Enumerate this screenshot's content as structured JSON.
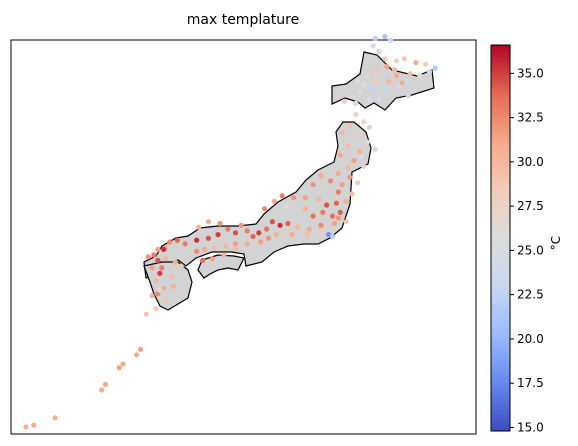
{
  "title": "max templature",
  "colorbar": {
    "unit": "°C",
    "min": 14.8,
    "max": 36.6,
    "ticks": [
      "15.0",
      "17.5",
      "20.0",
      "22.5",
      "25.0",
      "27.5",
      "30.0",
      "32.5",
      "35.0"
    ],
    "colormap": "coolwarm",
    "colors": [
      "#3b4cc0",
      "#6788ee",
      "#9abbff",
      "#c9d7f0",
      "#dddcdc",
      "#f2cbb7",
      "#f7a889",
      "#e26952",
      "#b40426"
    ]
  },
  "map": {
    "land_color": "#d3d3d3",
    "outline_color": "#000000",
    "region": "Japan",
    "stations": [
      [
        141.8,
        45.3,
        22.0
      ],
      [
        142.3,
        45.4,
        21.0
      ],
      [
        142.6,
        45.2,
        23.0
      ],
      [
        141.7,
        44.9,
        25.0
      ],
      [
        142.0,
        44.6,
        27.0
      ],
      [
        142.3,
        44.2,
        28.5
      ],
      [
        142.9,
        44.1,
        26.0
      ],
      [
        143.3,
        44.2,
        29.0
      ],
      [
        143.9,
        44.0,
        30.5
      ],
      [
        144.4,
        43.9,
        28.0
      ],
      [
        144.9,
        43.7,
        21.5
      ],
      [
        144.6,
        43.5,
        24.0
      ],
      [
        143.6,
        43.4,
        29.5
      ],
      [
        142.8,
        43.6,
        30.0
      ],
      [
        142.4,
        43.8,
        31.5
      ],
      [
        141.9,
        43.6,
        29.0
      ],
      [
        141.4,
        43.2,
        27.0
      ],
      [
        141.8,
        43.0,
        28.0
      ],
      [
        142.5,
        43.0,
        30.0
      ],
      [
        143.2,
        42.9,
        31.0
      ],
      [
        143.0,
        42.7,
        24.0
      ],
      [
        142.4,
        42.5,
        23.0
      ],
      [
        141.6,
        42.6,
        22.5
      ],
      [
        141.0,
        42.4,
        25.0
      ],
      [
        140.5,
        42.2,
        27.5
      ],
      [
        140.2,
        41.9,
        28.0
      ],
      [
        140.8,
        41.8,
        27.0
      ],
      [
        141.2,
        42.8,
        26.0
      ],
      [
        140.9,
        43.0,
        25.5
      ],
      [
        142.9,
        43.3,
        31.0
      ],
      [
        143.5,
        42.2,
        23.5
      ],
      [
        142.0,
        42.0,
        24.5
      ],
      [
        140.8,
        41.2,
        26.0
      ],
      [
        141.2,
        40.8,
        27.5
      ],
      [
        141.5,
        40.5,
        28.0
      ],
      [
        140.5,
        40.6,
        29.0
      ],
      [
        140.1,
        40.2,
        30.0
      ],
      [
        140.9,
        40.0,
        28.5
      ],
      [
        141.4,
        39.7,
        27.0
      ],
      [
        141.8,
        39.3,
        26.0
      ],
      [
        141.0,
        39.2,
        30.5
      ],
      [
        140.4,
        39.5,
        29.5
      ],
      [
        140.0,
        39.0,
        31.0
      ],
      [
        140.7,
        38.7,
        31.5
      ],
      [
        141.2,
        38.4,
        27.5
      ],
      [
        140.4,
        38.3,
        30.0
      ],
      [
        139.9,
        38.0,
        31.0
      ],
      [
        140.5,
        37.8,
        32.0
      ],
      [
        140.9,
        37.5,
        28.0
      ],
      [
        140.1,
        37.4,
        31.5
      ],
      [
        139.5,
        37.6,
        32.5
      ],
      [
        139.0,
        37.9,
        31.0
      ],
      [
        138.6,
        37.4,
        32.0
      ],
      [
        139.9,
        37.0,
        33.0
      ],
      [
        140.6,
        36.9,
        29.5
      ],
      [
        140.3,
        36.5,
        30.5
      ],
      [
        139.8,
        36.4,
        34.0
      ],
      [
        139.3,
        36.3,
        34.5
      ],
      [
        138.9,
        36.6,
        30.0
      ],
      [
        138.2,
        36.7,
        31.5
      ],
      [
        137.6,
        36.7,
        32.0
      ],
      [
        137.0,
        36.8,
        33.0
      ],
      [
        136.6,
        36.5,
        31.0
      ],
      [
        136.1,
        36.1,
        32.5
      ],
      [
        137.2,
        36.2,
        26.0
      ],
      [
        138.2,
        36.1,
        30.5
      ],
      [
        138.6,
        35.7,
        33.5
      ],
      [
        139.1,
        35.9,
        33.0
      ],
      [
        139.6,
        35.7,
        33.5
      ],
      [
        139.9,
        35.6,
        32.0
      ],
      [
        140.3,
        35.4,
        29.0
      ],
      [
        139.7,
        35.3,
        31.5
      ],
      [
        139.0,
        35.2,
        32.5
      ],
      [
        138.4,
        35.0,
        31.0
      ],
      [
        137.8,
        35.1,
        30.0
      ],
      [
        137.3,
        35.3,
        34.0
      ],
      [
        136.9,
        35.2,
        35.5
      ],
      [
        136.5,
        35.4,
        34.5
      ],
      [
        136.2,
        35.0,
        33.5
      ],
      [
        135.8,
        34.8,
        35.0
      ],
      [
        135.5,
        34.6,
        34.0
      ],
      [
        135.2,
        34.9,
        33.0
      ],
      [
        134.9,
        35.2,
        32.0
      ],
      [
        134.6,
        34.8,
        34.5
      ],
      [
        135.9,
        34.3,
        31.5
      ],
      [
        136.3,
        34.5,
        32.0
      ],
      [
        136.7,
        34.7,
        30.5
      ],
      [
        137.5,
        34.7,
        31.0
      ],
      [
        138.3,
        34.7,
        29.5
      ],
      [
        139.1,
        34.9,
        28.5
      ],
      [
        139.4,
        34.7,
        18.0
      ],
      [
        139.6,
        34.6,
        22.0
      ],
      [
        134.2,
        35.0,
        33.0
      ],
      [
        133.8,
        35.3,
        32.0
      ],
      [
        133.2,
        35.4,
        31.0
      ],
      [
        132.7,
        35.1,
        30.5
      ],
      [
        133.7,
        34.7,
        35.0
      ],
      [
        133.2,
        34.5,
        34.5
      ],
      [
        132.6,
        34.4,
        35.5
      ],
      [
        132.0,
        34.2,
        33.0
      ],
      [
        131.6,
        34.4,
        34.0
      ],
      [
        131.2,
        34.3,
        32.5
      ],
      [
        131.0,
        34.0,
        31.0
      ],
      [
        130.9,
        33.9,
        35.5
      ],
      [
        134.6,
        34.2,
        31.5
      ],
      [
        134.1,
        34.1,
        30.0
      ],
      [
        133.5,
        34.0,
        29.5
      ],
      [
        133.0,
        33.9,
        31.0
      ],
      [
        132.6,
        33.8,
        32.5
      ],
      [
        133.4,
        33.4,
        31.5
      ],
      [
        134.0,
        33.6,
        30.5
      ],
      [
        134.6,
        33.9,
        30.0
      ],
      [
        132.9,
        33.3,
        33.5
      ],
      [
        130.6,
        33.9,
        31.5
      ],
      [
        130.4,
        33.6,
        33.0
      ],
      [
        130.1,
        33.5,
        32.0
      ],
      [
        130.6,
        33.3,
        34.5
      ],
      [
        131.0,
        33.4,
        30.0
      ],
      [
        131.5,
        33.2,
        31.0
      ],
      [
        131.8,
        33.0,
        28.5
      ],
      [
        130.8,
        32.9,
        33.0
      ],
      [
        130.3,
        32.9,
        31.5
      ],
      [
        130.7,
        32.6,
        35.0
      ],
      [
        131.3,
        32.4,
        29.5
      ],
      [
        130.5,
        32.2,
        30.0
      ],
      [
        131.4,
        31.9,
        30.5
      ],
      [
        130.9,
        31.8,
        31.0
      ],
      [
        130.6,
        31.5,
        32.5
      ],
      [
        130.3,
        31.4,
        30.5
      ],
      [
        131.0,
        31.1,
        29.0
      ],
      [
        130.7,
        31.7,
        26.5
      ],
      [
        130.5,
        30.7,
        28.0
      ],
      [
        130.0,
        30.4,
        29.0
      ],
      [
        129.7,
        28.5,
        31.5
      ],
      [
        129.5,
        28.2,
        31.0
      ],
      [
        128.8,
        27.7,
        31.0
      ],
      [
        128.6,
        27.5,
        31.5
      ],
      [
        127.9,
        26.6,
        31.0
      ],
      [
        127.7,
        26.3,
        31.0
      ],
      [
        124.2,
        24.4,
        31.0
      ],
      [
        123.8,
        24.3,
        30.5
      ],
      [
        125.3,
        24.8,
        30.5
      ],
      [
        141.5,
        42.0,
        24.0
      ],
      [
        143.4,
        43.0,
        23.0
      ],
      [
        144.1,
        43.3,
        26.5
      ],
      [
        141.1,
        38.9,
        25.5
      ],
      [
        140.0,
        35.9,
        34.0
      ],
      [
        135.2,
        34.2,
        31.0
      ]
    ]
  }
}
